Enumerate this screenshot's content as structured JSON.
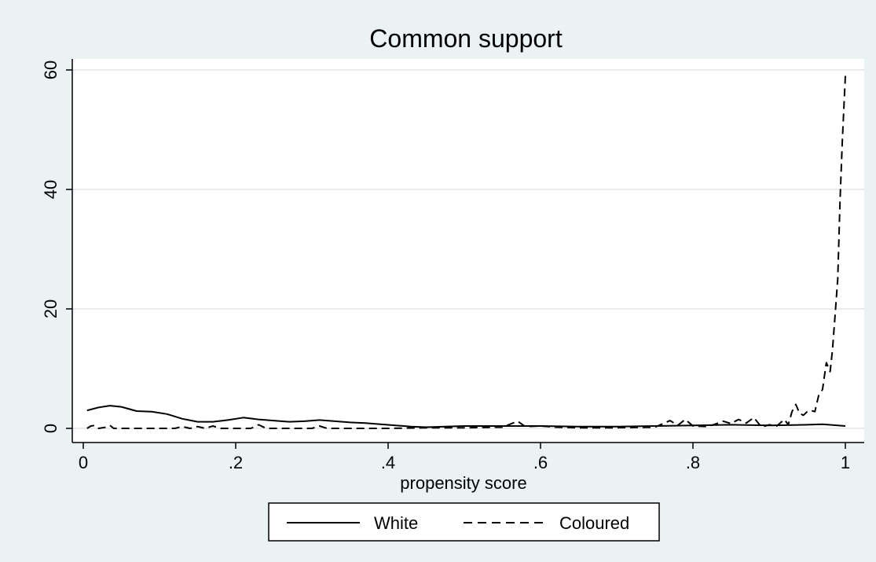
{
  "chart_data": {
    "type": "line",
    "title": "Common support",
    "xlabel": "propensity score",
    "ylabel": "",
    "xlim": [
      0,
      1
    ],
    "ylim": [
      0,
      60
    ],
    "x_ticks": [
      0,
      0.2,
      0.4,
      0.6,
      0.8,
      1
    ],
    "x_tick_labels": [
      "0",
      ".2",
      ".4",
      ".6",
      ".8",
      "1"
    ],
    "y_ticks": [
      0,
      20,
      40,
      60
    ],
    "y_tick_labels": [
      "0",
      "20",
      "40",
      "60"
    ],
    "grid": "horizontal",
    "legend_position": "bottom",
    "series": [
      {
        "name": "White",
        "style": "solid",
        "color": "#000000",
        "x": [
          0.005,
          0.02,
          0.035,
          0.05,
          0.07,
          0.09,
          0.11,
          0.13,
          0.15,
          0.17,
          0.19,
          0.21,
          0.23,
          0.25,
          0.27,
          0.29,
          0.31,
          0.33,
          0.35,
          0.37,
          0.39,
          0.41,
          0.43,
          0.45,
          0.5,
          0.55,
          0.6,
          0.65,
          0.7,
          0.75,
          0.8,
          0.85,
          0.9,
          0.95,
          0.97,
          1.0
        ],
        "values": [
          3.0,
          3.5,
          3.8,
          3.6,
          2.9,
          2.8,
          2.4,
          1.6,
          1.1,
          1.1,
          1.4,
          1.8,
          1.5,
          1.3,
          1.1,
          1.2,
          1.4,
          1.2,
          1.0,
          0.9,
          0.7,
          0.5,
          0.3,
          0.2,
          0.4,
          0.4,
          0.4,
          0.3,
          0.3,
          0.4,
          0.5,
          0.6,
          0.5,
          0.6,
          0.7,
          0.4
        ]
      },
      {
        "name": "Coloured",
        "style": "dashed",
        "color": "#000000",
        "x": [
          0.005,
          0.01,
          0.015,
          0.02,
          0.03,
          0.035,
          0.04,
          0.06,
          0.08,
          0.1,
          0.12,
          0.13,
          0.14,
          0.15,
          0.16,
          0.17,
          0.18,
          0.2,
          0.22,
          0.23,
          0.24,
          0.26,
          0.28,
          0.3,
          0.31,
          0.32,
          0.35,
          0.38,
          0.4,
          0.45,
          0.5,
          0.55,
          0.57,
          0.58,
          0.6,
          0.62,
          0.65,
          0.7,
          0.75,
          0.77,
          0.78,
          0.79,
          0.8,
          0.82,
          0.84,
          0.85,
          0.86,
          0.87,
          0.88,
          0.89,
          0.9,
          0.91,
          0.92,
          0.925,
          0.93,
          0.935,
          0.94,
          0.945,
          0.95,
          0.955,
          0.96,
          0.965,
          0.97,
          0.975,
          0.98,
          0.983,
          0.986,
          0.99,
          0.993,
          0.996,
          1.0
        ],
        "values": [
          0.0,
          0.4,
          0.5,
          0.0,
          0.2,
          0.5,
          0.0,
          0.0,
          0.0,
          0.0,
          0.0,
          0.3,
          0.0,
          0.3,
          0.0,
          0.4,
          0.0,
          0.0,
          0.0,
          0.6,
          0.0,
          0.0,
          0.0,
          0.0,
          0.4,
          0.0,
          0.0,
          0.0,
          0.0,
          0.1,
          0.1,
          0.2,
          1.2,
          0.3,
          0.4,
          0.2,
          0.1,
          0.1,
          0.2,
          1.3,
          0.5,
          1.5,
          0.4,
          0.3,
          1.2,
          0.8,
          1.5,
          0.9,
          1.8,
          0.2,
          0.6,
          0.4,
          1.5,
          0.6,
          2.8,
          4.0,
          2.5,
          2.2,
          2.8,
          3.0,
          2.8,
          5.5,
          6.5,
          11.0,
          9.5,
          13.0,
          18.0,
          25.0,
          38.0,
          48.0,
          59.0
        ]
      }
    ]
  }
}
